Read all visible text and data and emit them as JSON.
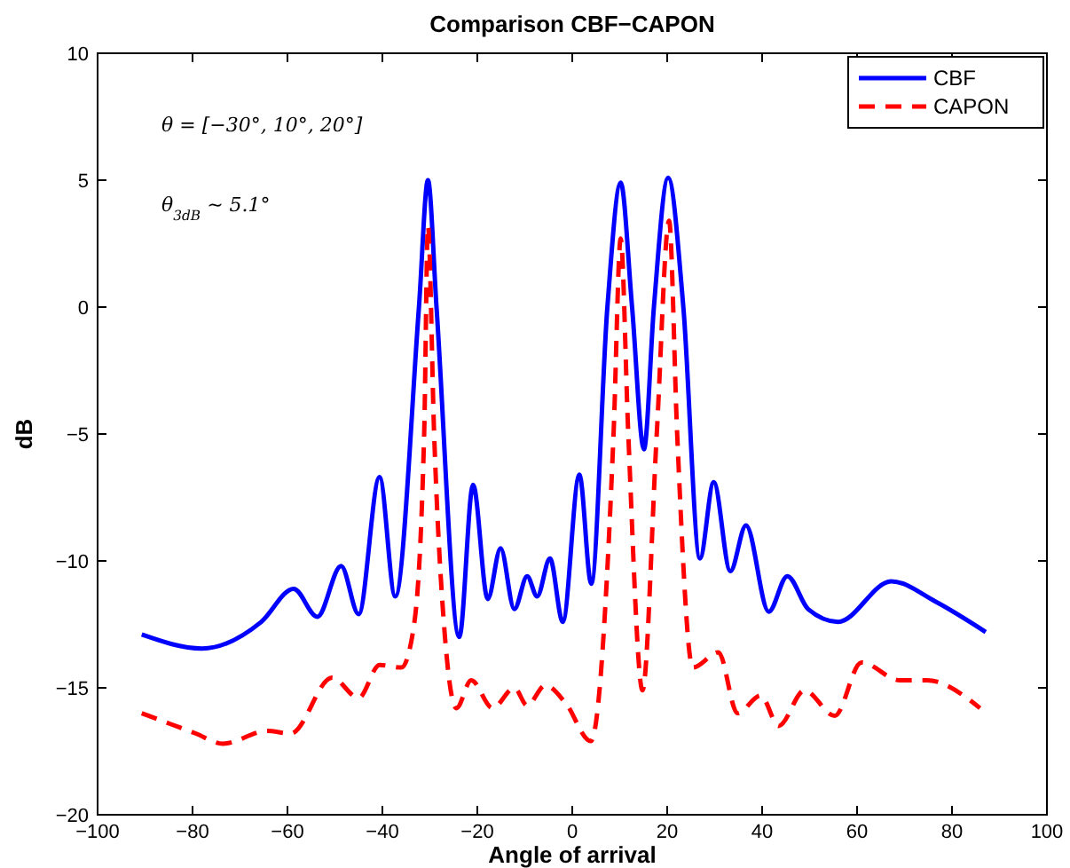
{
  "chart_data": {
    "type": "line",
    "title": "Comparison CBF−CAPON",
    "xlabel": "Angle of arrival",
    "ylabel": "dB",
    "xlim": [
      -100,
      100
    ],
    "xticks": [
      -100,
      -80,
      -60,
      -40,
      -20,
      0,
      20,
      40,
      60,
      80,
      100
    ],
    "ylim": [
      -20,
      10
    ],
    "yticks": [
      -20,
      -15,
      -10,
      -5,
      0,
      5,
      10
    ],
    "grid": false,
    "legend": "top right",
    "marker": "none",
    "annotations": [
      "θ = [−30°, 10°, 20°]",
      "θ$_{3dB}$ ∼ 5.1°"
    ],
    "series": [
      {
        "name": "CBF",
        "color": "#0000ff",
        "line_style": "solid",
        "x": [
          -90.7,
          -78,
          -65.5,
          -58.7,
          -53.7,
          -48.7,
          -45,
          -40.6,
          -37.3,
          -32.3,
          -30.4,
          -28.6,
          -23.8,
          -20.9,
          -17.8,
          -15.1,
          -12.2,
          -9.5,
          -7.4,
          -4.7,
          -2,
          1.5,
          4,
          7.4,
          10.2,
          12.6,
          15.1,
          17.2,
          20.2,
          23.4,
          26.9,
          29.8,
          33.3,
          36.6,
          41.4,
          45.3,
          49.7,
          56,
          67.2,
          76.5,
          87.1
        ],
        "values": [
          -12.9,
          -13.45,
          -12.4,
          -11.1,
          -12.2,
          -10.2,
          -12.1,
          -6.7,
          -11.4,
          0,
          5,
          0,
          -13,
          -7,
          -11.5,
          -9.5,
          -11.9,
          -10.6,
          -11.4,
          -9.9,
          -12.4,
          -6.6,
          -10.9,
          0,
          4.9,
          0,
          -5.6,
          0,
          5.1,
          0,
          -9.9,
          -6.9,
          -10.4,
          -8.6,
          -12,
          -10.6,
          -11.9,
          -12.4,
          -10.8,
          -11.6,
          -12.8
        ]
      },
      {
        "name": "CAPON",
        "color": "#ff0000",
        "line_style": "dashed",
        "x": [
          -90.7,
          -79.3,
          -73.6,
          -64.3,
          -59.3,
          -50.6,
          -45,
          -40.6,
          -36,
          -33.4,
          -31.2,
          -30.4,
          -29.1,
          -26.9,
          -24.4,
          -21.3,
          -16.8,
          -12.2,
          -9.5,
          -5.7,
          -1.4,
          3.9,
          8.7,
          10.2,
          11.8,
          14.8,
          17.8,
          20.4,
          22.1,
          25.4,
          30.8,
          34.8,
          39.7,
          43.5,
          48.9,
          55.3,
          60.9,
          69,
          74.7,
          85.9
        ],
        "values": [
          -16,
          -16.8,
          -17.2,
          -16.7,
          -16.8,
          -14.6,
          -15.4,
          -14.1,
          -14.2,
          -12.6,
          -5,
          3.2,
          -5,
          -12.8,
          -15.8,
          -14.7,
          -15.8,
          -15,
          -15.7,
          -14.9,
          -15.6,
          -17.1,
          -5,
          2.7,
          -5,
          -15.1,
          -5,
          3.4,
          -5,
          -14.2,
          -13.6,
          -16,
          -15.3,
          -16.5,
          -15.1,
          -16.1,
          -14,
          -14.7,
          -14.7,
          -15.8
        ]
      }
    ]
  }
}
